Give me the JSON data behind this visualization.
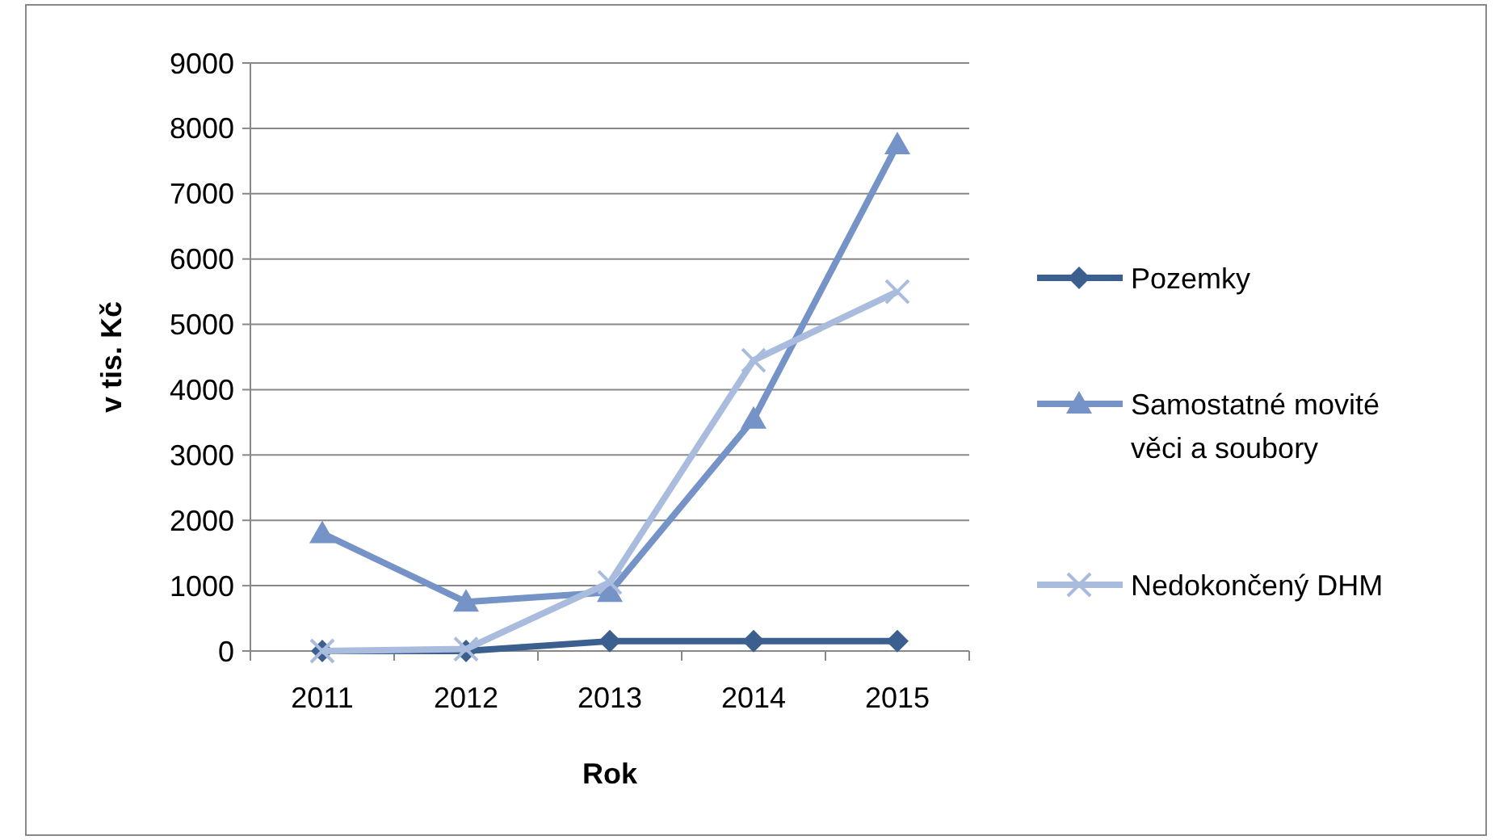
{
  "chart_data": {
    "type": "line",
    "xlabel": "Rok",
    "ylabel": "v tis. Kč",
    "categories": [
      "2011",
      "2012",
      "2013",
      "2014",
      "2015"
    ],
    "series": [
      {
        "name": "Pozemky",
        "color": "#3b5f8e",
        "marker": "diamond",
        "values": [
          0,
          0,
          150,
          150,
          150
        ]
      },
      {
        "name": "Samostatné movité věci a soubory",
        "color": "#7593c6",
        "marker": "triangle",
        "values": [
          1800,
          750,
          900,
          3550,
          7750
        ]
      },
      {
        "name": "Nedokončený DHM",
        "color": "#a9bcdd",
        "marker": "cross",
        "values": [
          0,
          30,
          1050,
          4450,
          5500
        ]
      }
    ],
    "ylim": [
      0,
      9000
    ],
    "yticks": [
      0,
      1000,
      2000,
      3000,
      4000,
      5000,
      6000,
      7000,
      8000,
      9000
    ],
    "grid": "y",
    "legend": "right"
  }
}
